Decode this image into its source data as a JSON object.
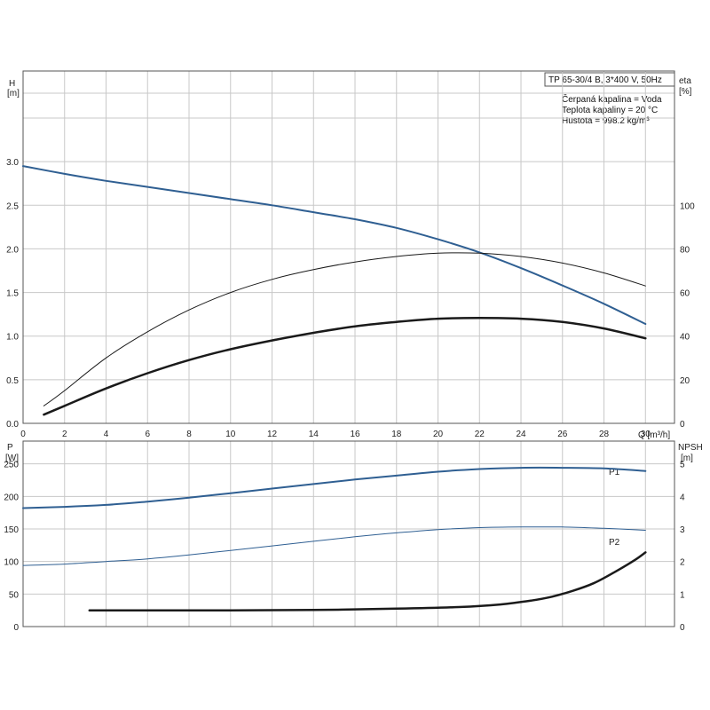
{
  "colors": {
    "blue": "#2f5f92",
    "dark": "#1a1a1a",
    "grid": "#c8c8c8",
    "axis": "#555555"
  },
  "info": {
    "title": "TP 65-30/4 B, 3*400 V, 50Hz",
    "liquid": "Čerpaná kapalina = Voda",
    "temperature": "Teplota kapaliny = 20 °C",
    "density": "Hustota = 998.2 kg/m³"
  },
  "chart_data": [
    {
      "type": "line",
      "id": "top",
      "xlabel": "Q [m³/h]",
      "x_ticks": [
        "0",
        "2",
        "4",
        "6",
        "8",
        "10",
        "12",
        "14",
        "16",
        "18",
        "20",
        "22",
        "24",
        "26",
        "28",
        "30"
      ],
      "xlim": [
        0,
        31.4
      ],
      "left_axis": {
        "label_line1": "H",
        "label_line2": "[m]",
        "ylim": [
          0,
          3.5
        ],
        "ticks": [
          "0.0",
          "0.5",
          "1.0",
          "1.5",
          "2.0",
          "2.5",
          "3.0"
        ]
      },
      "right_axis": {
        "label_line1": "eta",
        "label_line2": "[%]",
        "ylim": [
          0,
          140
        ],
        "ticks": [
          "0",
          "20",
          "40",
          "60",
          "80",
          "100"
        ]
      },
      "series": [
        {
          "axis": "left",
          "color_key": "blue",
          "width": 2,
          "x": [
            0,
            2,
            4,
            6,
            8,
            10,
            12,
            14,
            16,
            18,
            20,
            22,
            24,
            26,
            28,
            30
          ],
          "y": [
            2.95,
            2.86,
            2.78,
            2.71,
            2.64,
            2.57,
            2.5,
            2.42,
            2.34,
            2.24,
            2.11,
            1.96,
            1.78,
            1.58,
            1.37,
            1.14
          ]
        },
        {
          "axis": "right",
          "color_key": "dark",
          "width": 1,
          "x": [
            1,
            2,
            4,
            6,
            8,
            10,
            12,
            14,
            16,
            18,
            20,
            22,
            24,
            26,
            28,
            30
          ],
          "y": [
            8,
            15,
            30,
            42,
            52,
            60,
            66,
            70.5,
            74,
            76.5,
            78,
            78,
            76.5,
            73.5,
            69,
            63
          ]
        },
        {
          "axis": "right",
          "color_key": "dark",
          "width": 2.5,
          "x": [
            1,
            2,
            4,
            6,
            8,
            10,
            12,
            14,
            16,
            18,
            20,
            22,
            24,
            26,
            28,
            30
          ],
          "y": [
            4,
            8,
            16,
            23,
            29,
            34,
            38,
            41.5,
            44.5,
            46.5,
            48,
            48.3,
            48,
            46.5,
            43.5,
            39
          ]
        }
      ]
    },
    {
      "type": "line",
      "id": "bottom",
      "x_ticks": [
        "0",
        "2",
        "4",
        "6",
        "8",
        "10",
        "12",
        "14",
        "16",
        "18",
        "20",
        "22",
        "24",
        "26",
        "28",
        "30"
      ],
      "xlim": [
        0,
        31.4
      ],
      "left_axis": {
        "label_line1": "P",
        "label_line2": "[W]",
        "ylim": [
          0,
          285
        ],
        "ticks": [
          "0",
          "50",
          "100",
          "150",
          "200",
          "250"
        ]
      },
      "right_axis": {
        "label_line1": "NPSH",
        "label_line2": "[m]",
        "ylim": [
          0,
          5.7
        ],
        "ticks": [
          "0",
          "1",
          "2",
          "3",
          "4",
          "5"
        ]
      },
      "series": [
        {
          "name": "P1",
          "axis": "left",
          "color_key": "blue",
          "width": 2,
          "x": [
            0,
            2,
            4,
            6,
            8,
            10,
            12,
            14,
            16,
            18,
            20,
            22,
            24,
            26,
            28,
            30
          ],
          "y": [
            182,
            184,
            187,
            192,
            198,
            205,
            212,
            219,
            226,
            232,
            238,
            242,
            244,
            244,
            243,
            239
          ]
        },
        {
          "name": "P2",
          "axis": "left",
          "color_key": "blue",
          "width": 1,
          "x": [
            0,
            2,
            4,
            6,
            8,
            10,
            12,
            14,
            16,
            18,
            20,
            22,
            24,
            26,
            28,
            30
          ],
          "y": [
            94,
            96,
            100,
            104,
            110,
            117,
            124,
            131,
            138,
            144,
            149,
            152,
            153,
            153,
            151,
            148
          ]
        },
        {
          "axis": "right",
          "color_key": "dark",
          "width": 2.5,
          "x": [
            3.2,
            6,
            10,
            14,
            18,
            21,
            23,
            24.5,
            25.5,
            26.5,
            27.5,
            28.5,
            29.5,
            30
          ],
          "y": [
            0.5,
            0.5,
            0.5,
            0.51,
            0.55,
            0.6,
            0.68,
            0.8,
            0.92,
            1.1,
            1.33,
            1.67,
            2.05,
            2.28
          ]
        }
      ]
    }
  ]
}
